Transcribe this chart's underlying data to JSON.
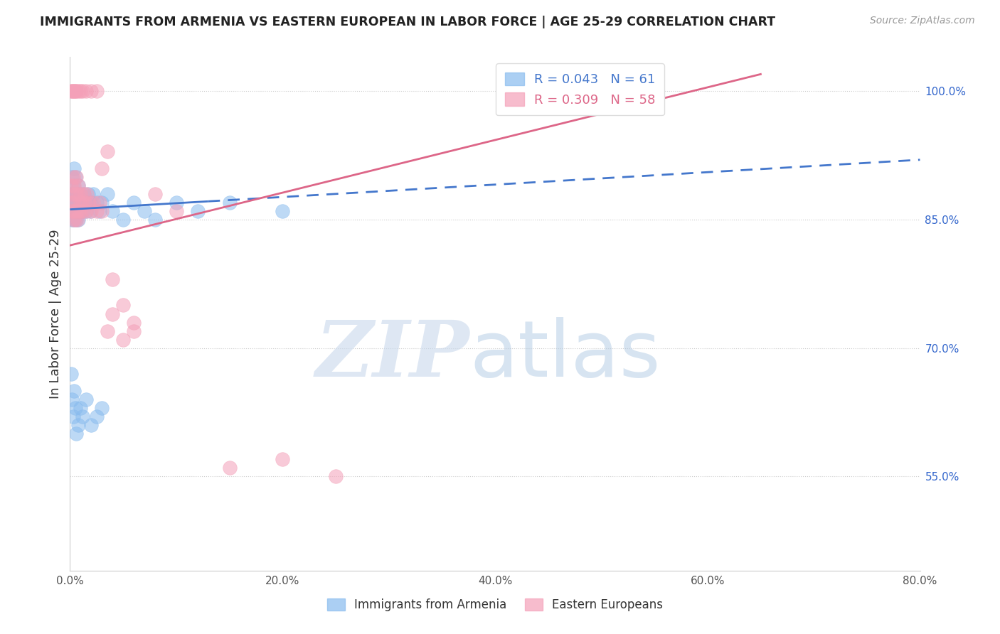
{
  "title": "IMMIGRANTS FROM ARMENIA VS EASTERN EUROPEAN IN LABOR FORCE | AGE 25-29 CORRELATION CHART",
  "source": "Source: ZipAtlas.com",
  "ylabel": "In Labor Force | Age 25-29",
  "armenia_color": "#88bbee",
  "eastern_color": "#f4a0b8",
  "armenia_line_color": "#4477cc",
  "eastern_line_color": "#dd6688",
  "background_color": "#ffffff",
  "xlim": [
    0.0,
    0.8
  ],
  "ylim": [
    0.44,
    1.04
  ],
  "ytick_vals": [
    0.55,
    0.7,
    0.85,
    1.0
  ],
  "ytick_labels": [
    "55.0%",
    "70.0%",
    "85.0%",
    "100.0%"
  ],
  "xtick_vals": [
    0.0,
    0.2,
    0.4,
    0.6,
    0.8
  ],
  "xtick_labels": [
    "0.0%",
    "20.0%",
    "40.0%",
    "60.0%",
    "80.0%"
  ],
  "armenia_x": [
    0.001,
    0.001,
    0.002,
    0.002,
    0.002,
    0.003,
    0.003,
    0.003,
    0.003,
    0.004,
    0.004,
    0.004,
    0.005,
    0.005,
    0.005,
    0.006,
    0.006,
    0.007,
    0.007,
    0.008,
    0.008,
    0.009,
    0.01,
    0.01,
    0.011,
    0.012,
    0.013,
    0.014,
    0.015,
    0.016,
    0.017,
    0.018,
    0.019,
    0.02,
    0.022,
    0.025,
    0.028,
    0.03,
    0.035,
    0.04,
    0.05,
    0.06,
    0.07,
    0.08,
    0.1,
    0.12,
    0.15,
    0.2,
    0.001,
    0.002,
    0.003,
    0.004,
    0.005,
    0.006,
    0.008,
    0.01,
    0.012,
    0.015,
    0.02,
    0.025,
    0.03
  ],
  "armenia_y": [
    0.86,
    0.88,
    0.85,
    0.87,
    0.9,
    0.86,
    0.87,
    0.88,
    0.89,
    0.85,
    0.87,
    0.91,
    0.86,
    0.88,
    0.9,
    0.85,
    0.87,
    0.86,
    0.88,
    0.85,
    0.89,
    0.87,
    0.86,
    0.88,
    0.87,
    0.86,
    0.88,
    0.87,
    0.86,
    0.87,
    0.88,
    0.87,
    0.86,
    0.87,
    0.88,
    0.87,
    0.86,
    0.87,
    0.88,
    0.86,
    0.85,
    0.87,
    0.86,
    0.85,
    0.87,
    0.86,
    0.87,
    0.86,
    0.67,
    0.64,
    0.62,
    0.65,
    0.63,
    0.6,
    0.61,
    0.63,
    0.62,
    0.64,
    0.61,
    0.62,
    0.63
  ],
  "eastern_x": [
    0.001,
    0.001,
    0.002,
    0.002,
    0.003,
    0.003,
    0.003,
    0.004,
    0.004,
    0.005,
    0.005,
    0.006,
    0.006,
    0.007,
    0.007,
    0.008,
    0.008,
    0.009,
    0.01,
    0.01,
    0.011,
    0.012,
    0.013,
    0.014,
    0.015,
    0.016,
    0.018,
    0.02,
    0.022,
    0.025,
    0.028,
    0.03,
    0.035,
    0.04,
    0.05,
    0.06,
    0.001,
    0.002,
    0.003,
    0.004,
    0.005,
    0.006,
    0.008,
    0.01,
    0.012,
    0.015,
    0.02,
    0.025,
    0.03,
    0.035,
    0.04,
    0.05,
    0.06,
    0.08,
    0.1,
    0.15,
    0.2,
    0.25
  ],
  "eastern_y": [
    0.87,
    0.89,
    0.86,
    0.88,
    0.85,
    0.87,
    0.9,
    0.86,
    0.89,
    0.85,
    0.88,
    0.86,
    0.9,
    0.85,
    0.88,
    0.86,
    0.89,
    0.87,
    0.86,
    0.88,
    0.87,
    0.86,
    0.88,
    0.87,
    0.86,
    0.88,
    0.87,
    0.86,
    0.87,
    0.86,
    0.87,
    0.86,
    0.72,
    0.74,
    0.71,
    0.73,
    1.0,
    1.0,
    1.0,
    1.0,
    1.0,
    1.0,
    1.0,
    1.0,
    1.0,
    1.0,
    1.0,
    1.0,
    0.91,
    0.93,
    0.78,
    0.75,
    0.72,
    0.88,
    0.86,
    0.56,
    0.57,
    0.55
  ],
  "legend_R_armenia": "R = 0.043",
  "legend_N_armenia": "N = 61",
  "legend_R_eastern": "R = 0.309",
  "legend_N_eastern": "N = 58",
  "legend_label_armenia": "Immigrants from Armenia",
  "legend_label_eastern": "Eastern Europeans",
  "watermark_zip": "ZIP",
  "watermark_atlas": "atlas"
}
